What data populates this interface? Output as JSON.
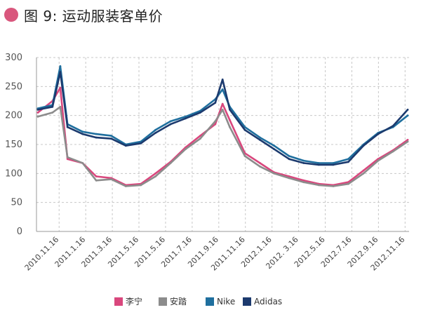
{
  "page": {
    "title": "图 9: 运动服装客单价"
  },
  "chart_data": {
    "type": "line",
    "title": "图 9: 运动服装客单价",
    "xlabel": "",
    "ylabel": "",
    "ylim": [
      0,
      300
    ],
    "yticks": [
      0,
      50,
      100,
      150,
      200,
      250,
      300
    ],
    "grid": true,
    "legend_position": "bottom",
    "x_tick_labels": [
      "2010.11.16",
      "2011.1.16",
      "2011.3.16",
      "2011.5.16",
      "2011.5.16",
      "2011.7.16",
      "2011.9.16",
      "2011.11.16",
      "2012.1.16",
      "2012. 3.16",
      "2012.5.16",
      "2012.7.16",
      "2012.9.16",
      "2012.11.16"
    ],
    "x": [
      "2010-11-16",
      "2010-12-16",
      "2011-01-01",
      "2011-01-16",
      "2011-02-16",
      "2011-03-16",
      "2011-04-16",
      "2011-05-16",
      "2011-06-16",
      "2011-07-16",
      "2011-08-16",
      "2011-09-16",
      "2011-10-16",
      "2011-11-16",
      "2011-12-01",
      "2011-12-16",
      "2012-01-16",
      "2012-02-16",
      "2012-03-16",
      "2012-04-16",
      "2012-05-16",
      "2012-06-16",
      "2012-07-16",
      "2012-08-16",
      "2012-09-16",
      "2012-10-16",
      "2012-11-16",
      "2012-12-16"
    ],
    "series": [
      {
        "name": "李宁",
        "color": "#d9477d",
        "values": [
          205,
          225,
          248,
          125,
          118,
          95,
          92,
          80,
          82,
          100,
          120,
          145,
          165,
          185,
          220,
          192,
          135,
          118,
          102,
          95,
          88,
          82,
          80,
          85,
          105,
          125,
          140,
          158
        ]
      },
      {
        "name": "安踏",
        "color": "#8c8c8c",
        "values": [
          198,
          205,
          215,
          128,
          118,
          88,
          90,
          78,
          80,
          95,
          118,
          142,
          160,
          190,
          210,
          180,
          130,
          112,
          100,
          92,
          85,
          80,
          78,
          82,
          100,
          122,
          138,
          155
        ]
      },
      {
        "name": "Nike",
        "color": "#1f6f9e",
        "values": [
          212,
          218,
          285,
          185,
          172,
          168,
          165,
          150,
          155,
          175,
          190,
          198,
          208,
          228,
          245,
          215,
          180,
          162,
          148,
          130,
          122,
          118,
          118,
          125,
          150,
          170,
          180,
          200
        ]
      },
      {
        "name": "Adidas",
        "color": "#1c3a6e",
        "values": [
          210,
          215,
          275,
          180,
          168,
          162,
          160,
          148,
          152,
          170,
          185,
          195,
          205,
          222,
          262,
          210,
          175,
          158,
          142,
          125,
          118,
          115,
          115,
          120,
          148,
          168,
          182,
          210
        ]
      }
    ]
  }
}
